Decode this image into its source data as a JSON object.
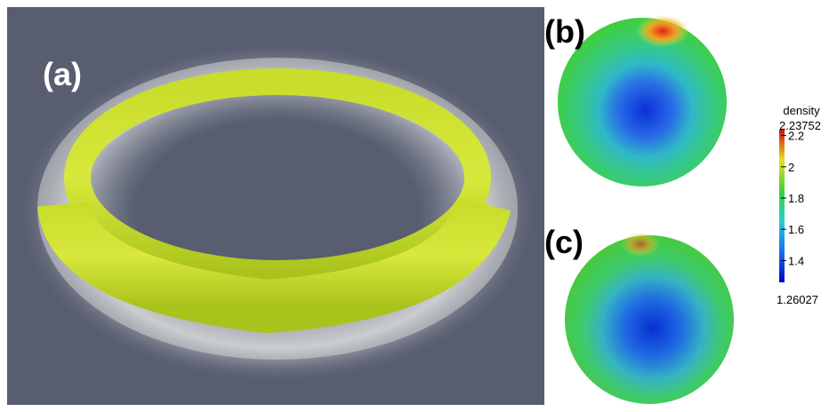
{
  "panels": [
    {
      "label": "(a)"
    },
    {
      "label": "(b)"
    },
    {
      "label": "(c)"
    }
  ],
  "colorbar": {
    "title": "density",
    "range": [
      1.26027,
      2.23752
    ],
    "ticks": [
      1.4,
      1.6,
      1.8,
      2,
      2.2
    ]
  }
}
